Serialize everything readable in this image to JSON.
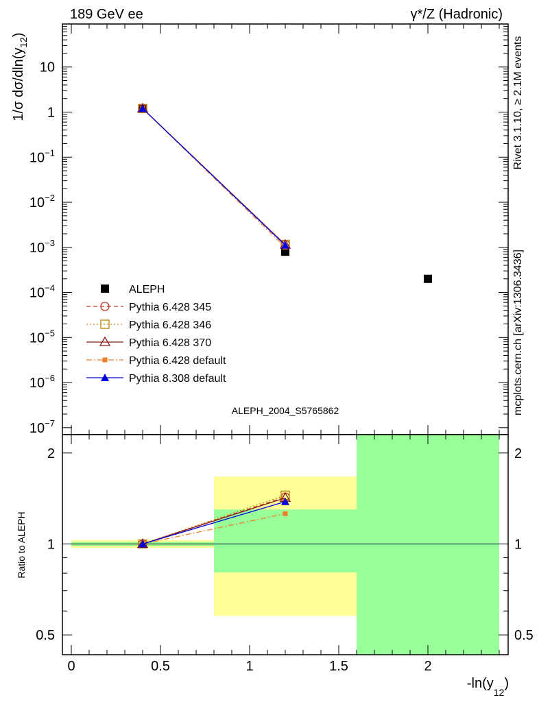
{
  "header": {
    "left": "189 GeV ee",
    "right": "γ*/Z (Hadronic)"
  },
  "side_text": {
    "rivet": "Rivet 3.1.10, ≥ 2.1M events",
    "mcplots": "mcplots.cern.ch [arXiv:1306.3436]"
  },
  "watermark": "ALEPH_2004_S5765862",
  "chart_data": [
    {
      "type": "scatter",
      "panel": "main",
      "ylabel": "1/σ  dσ/dln(y12)",
      "yscale": "log",
      "xlim": [
        -0.05,
        2.45
      ],
      "ylim": [
        7e-08,
        90
      ],
      "y_tick_labels": [
        "10",
        "1",
        "10⁻¹",
        "10⁻²",
        "10⁻³",
        "10⁻⁴",
        "10⁻⁵",
        "10⁻⁶",
        "10⁻⁷"
      ],
      "y_tick_values": [
        10,
        1,
        0.1,
        0.01,
        0.001,
        0.0001,
        1e-05,
        1e-06,
        1e-07
      ],
      "legend_position": "lower-left",
      "series": [
        {
          "name": "ALEPH",
          "color": "#000000",
          "marker": "square-filled",
          "line": "none",
          "x": [
            0.4,
            1.2,
            2.0
          ],
          "y": [
            1.2,
            0.0008,
            0.0002
          ]
        },
        {
          "name": "Pythia 6.428 345",
          "color": "#c0392b",
          "marker": "circle-open",
          "line": "dashed",
          "x": [
            0.4,
            1.2
          ],
          "y": [
            1.2,
            0.00115
          ]
        },
        {
          "name": "Pythia 6.428 346",
          "color": "#b8860b",
          "marker": "square-open",
          "line": "dotted",
          "x": [
            0.4,
            1.2
          ],
          "y": [
            1.2,
            0.00116
          ]
        },
        {
          "name": "Pythia 6.428 370",
          "color": "#8b1a1a",
          "marker": "triangle-open",
          "line": "solid",
          "x": [
            0.4,
            1.2
          ],
          "y": [
            1.2,
            0.00114
          ]
        },
        {
          "name": "Pythia 6.428 default",
          "color": "#f07f2a",
          "marker": "square-filled-small",
          "line": "dashdot",
          "x": [
            0.4,
            1.2
          ],
          "y": [
            1.2,
            0.00101
          ]
        },
        {
          "name": "Pythia 8.308 default",
          "color": "#0000dd",
          "marker": "triangle-filled",
          "line": "solid",
          "x": [
            0.4,
            1.2
          ],
          "y": [
            1.2,
            0.00111
          ]
        }
      ]
    },
    {
      "type": "scatter",
      "panel": "ratio",
      "ylabel": "Ratio to ALEPH",
      "xlabel": "-ln(y12)",
      "yscale": "log",
      "xlim": [
        -0.05,
        2.45
      ],
      "ylim": [
        0.43,
        2.3
      ],
      "x_tick_labels": [
        "0",
        "0.5",
        "1",
        "1.5",
        "2"
      ],
      "x_tick_values": [
        0,
        0.5,
        1,
        1.5,
        2
      ],
      "y_tick_labels": [
        "0.5",
        "1",
        "2"
      ],
      "y_tick_values": [
        0.5,
        1,
        2
      ],
      "reference_line": 1,
      "uncertainty_bands": [
        {
          "x": [
            0,
            0.8
          ],
          "yellow": [
            0.97,
            1.03
          ],
          "green": [
            0.985,
            1.015
          ]
        },
        {
          "x": [
            0.8,
            1.6
          ],
          "yellow": [
            0.578,
            1.67
          ],
          "green": [
            0.805,
            1.3
          ]
        },
        {
          "x": [
            1.6,
            2.4
          ],
          "yellow": [
            0.43,
            2.3
          ],
          "green": [
            0.43,
            2.3
          ]
        }
      ],
      "series": [
        {
          "name": "Pythia 6.428 345",
          "color": "#c0392b",
          "marker": "circle-open",
          "line": "dashed",
          "x": [
            0.4,
            1.2
          ],
          "y": [
            1.0,
            1.43
          ]
        },
        {
          "name": "Pythia 6.428 346",
          "color": "#b8860b",
          "marker": "square-open",
          "line": "dotted",
          "x": [
            0.4,
            1.2
          ],
          "y": [
            1.0,
            1.45
          ]
        },
        {
          "name": "Pythia 6.428 370",
          "color": "#8b1a1a",
          "marker": "triangle-open",
          "line": "solid",
          "x": [
            0.4,
            1.2
          ],
          "y": [
            1.0,
            1.42
          ]
        },
        {
          "name": "Pythia 6.428 default",
          "color": "#f07f2a",
          "marker": "square-filled-small",
          "line": "dashdot",
          "x": [
            0.4,
            1.2
          ],
          "y": [
            1.0,
            1.26
          ]
        },
        {
          "name": "Pythia 8.308 default",
          "color": "#0000dd",
          "marker": "triangle-filled",
          "line": "solid",
          "x": [
            0.4,
            1.2
          ],
          "y": [
            1.0,
            1.38
          ]
        }
      ]
    }
  ]
}
